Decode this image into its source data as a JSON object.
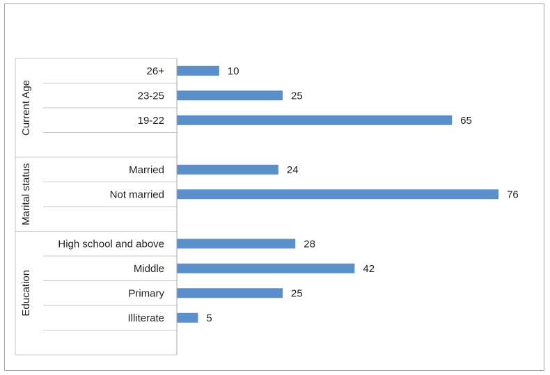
{
  "chart_data": {
    "type": "bar",
    "orientation": "horizontal",
    "groups": [
      {
        "name": "Current Age",
        "items": [
          {
            "category": "26+",
            "value": 10
          },
          {
            "category": "23-25",
            "value": 25
          },
          {
            "category": "19-22",
            "value": 65
          }
        ]
      },
      {
        "name": "Marital status",
        "items": [
          {
            "category": "Married",
            "value": 24
          },
          {
            "category": "Not married",
            "value": 76
          }
        ]
      },
      {
        "name": "Education",
        "items": [
          {
            "category": "High school and above",
            "value": 28
          },
          {
            "category": "Middle",
            "value": 42
          },
          {
            "category": "Primary",
            "value": 25
          },
          {
            "category": "Illiterate",
            "value": 5
          }
        ]
      }
    ],
    "xlim": [
      0,
      80
    ],
    "grid": false,
    "legend": "none",
    "bar_color": "#5b8fcb"
  }
}
